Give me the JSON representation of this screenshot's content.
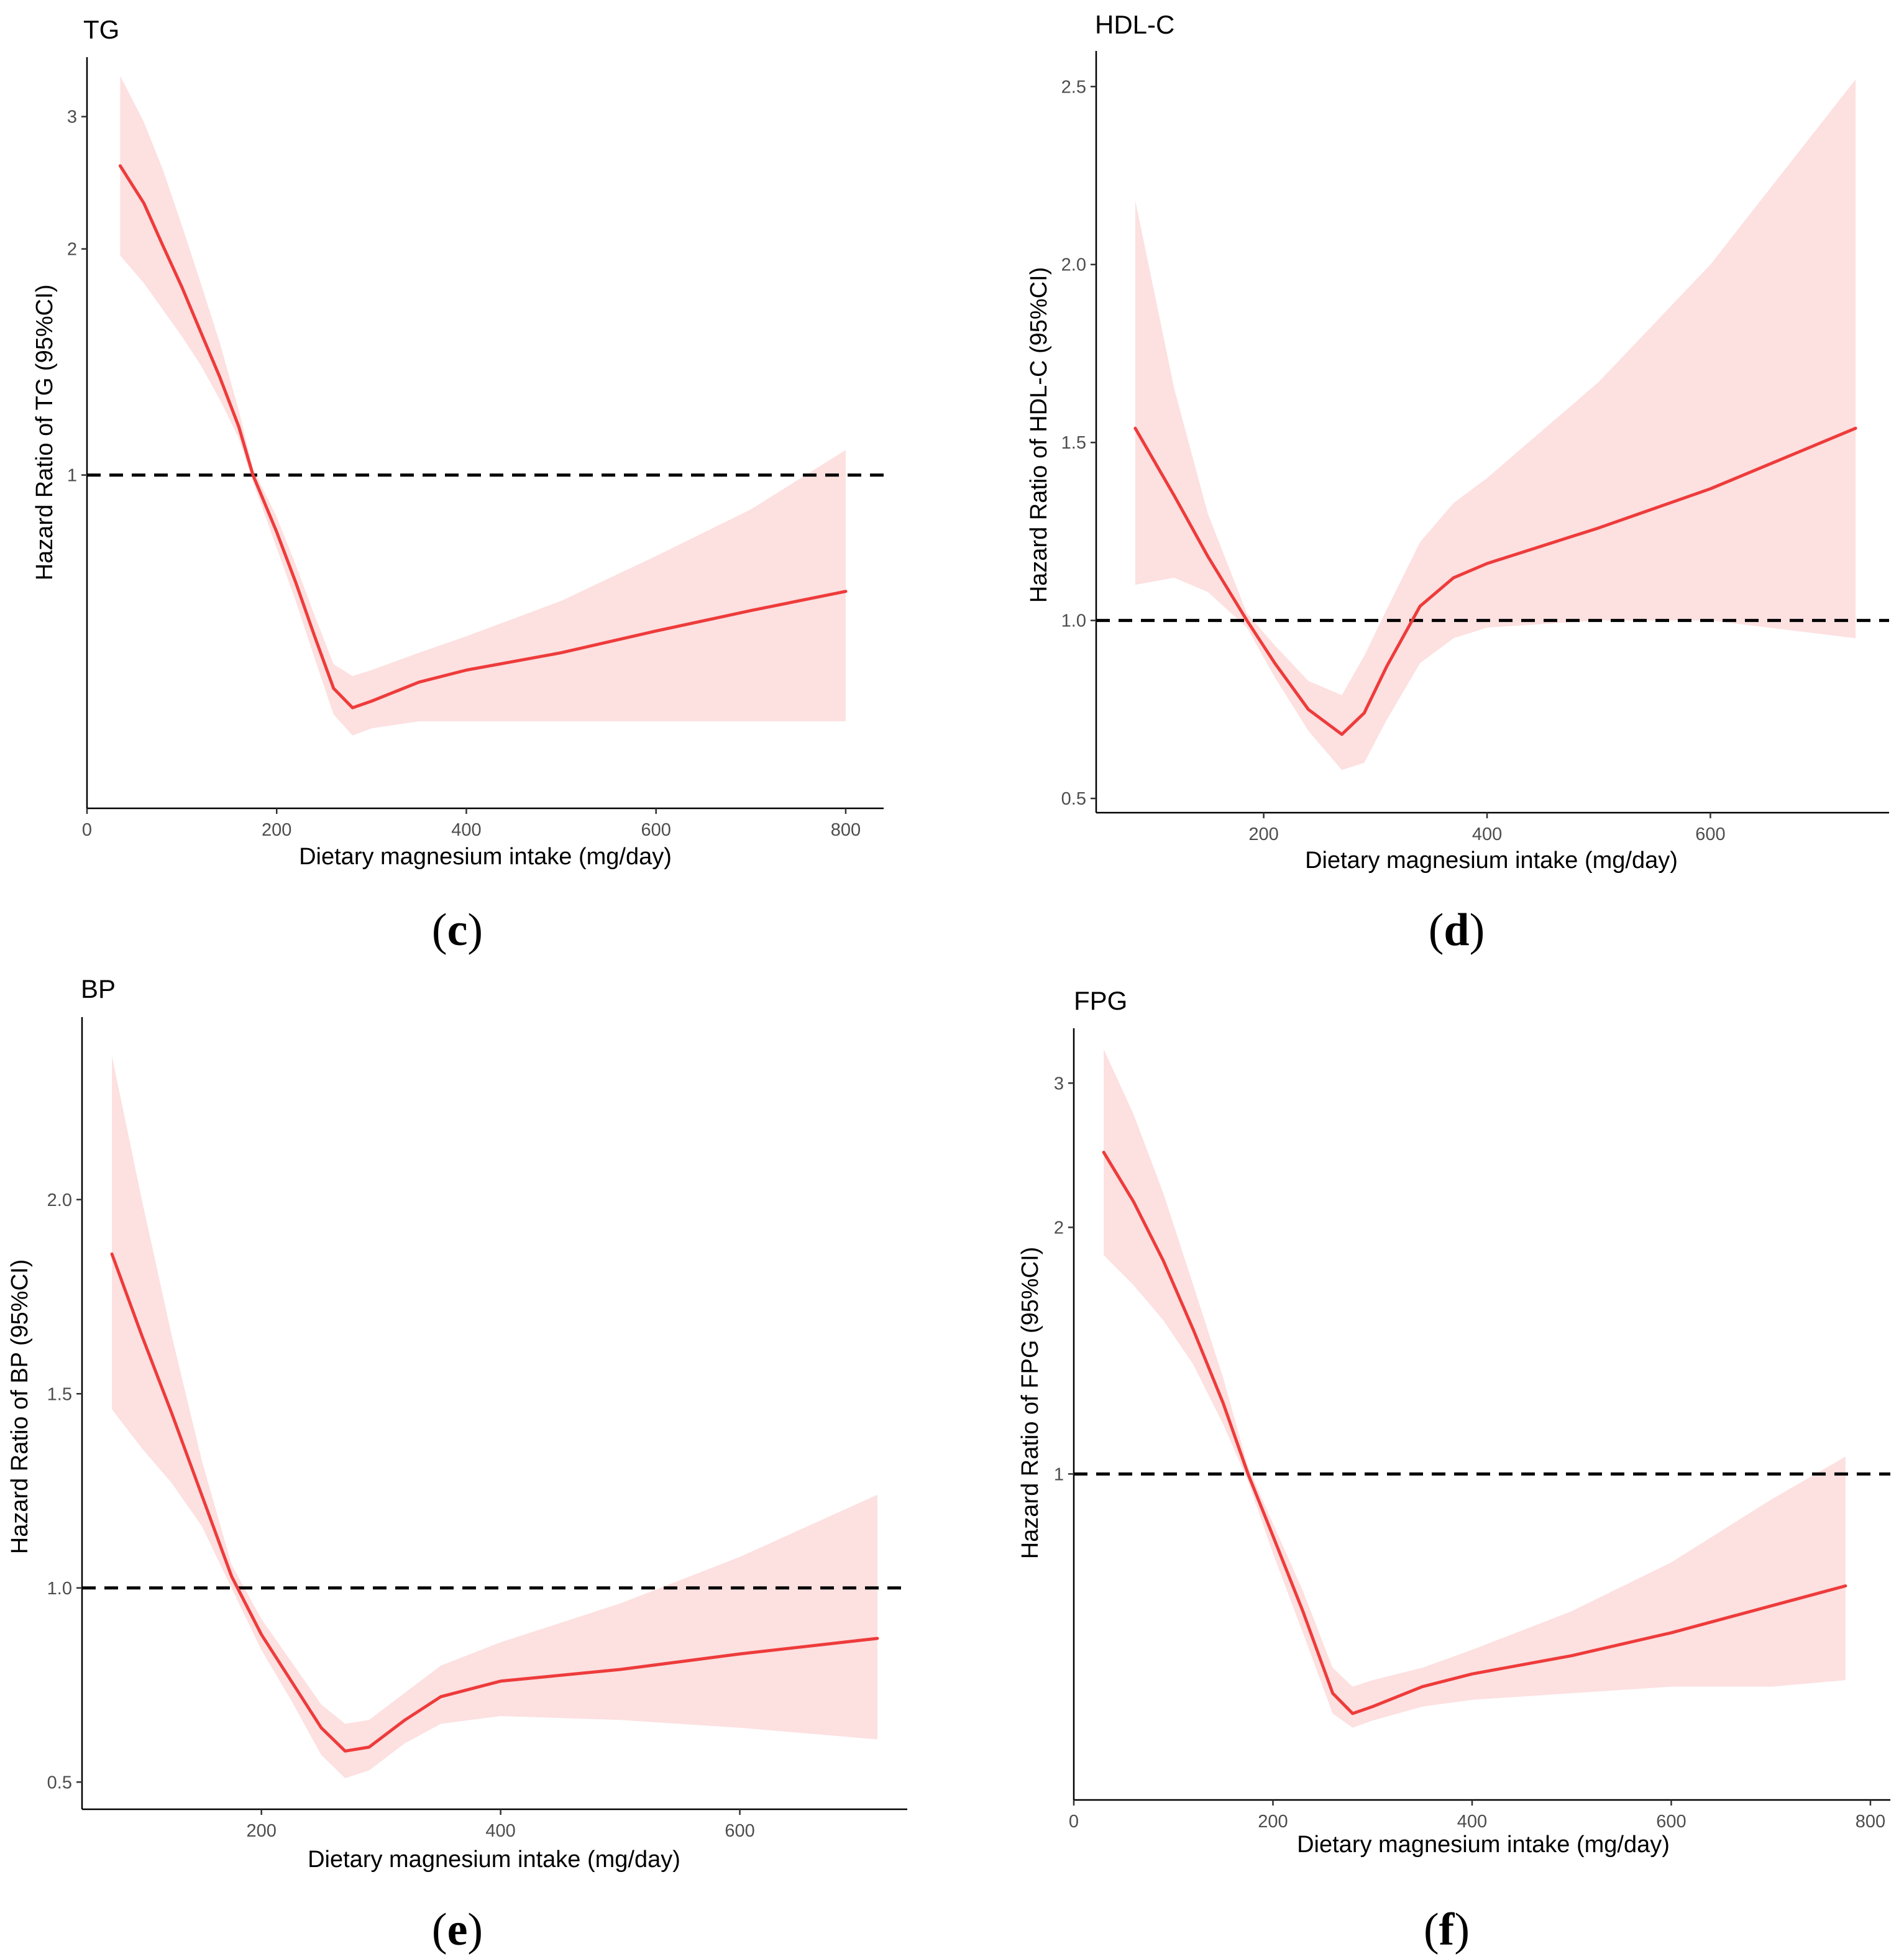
{
  "chart_data": [
    {
      "type": "line",
      "panel": "c",
      "caption": {
        "open": "(",
        "letter": "c",
        "close": ")"
      },
      "title": "TG",
      "xlabel": "Dietary magnesium intake (mg/day)",
      "ylabel": "Hazard Ratio of TG (95%CI)",
      "log_y": true,
      "xlim": [
        0,
        840
      ],
      "ylim": [
        0.36,
        3.6
      ],
      "xticks": [
        0,
        200,
        400,
        600,
        800
      ],
      "xtick_labels": [
        "0",
        "200",
        "400",
        "600",
        "800"
      ],
      "yticks": [
        1,
        2,
        3
      ],
      "ytick_labels": [
        "1",
        "2",
        "3"
      ],
      "reference_line": 1,
      "colors": {
        "line": "#ee3b3b",
        "band": "#fde0e0",
        "reference": "#000000"
      },
      "series": [
        {
          "x": [
            35,
            60,
            80,
            100,
            120,
            140,
            160,
            175,
            200,
            220,
            240,
            260,
            280,
            300,
            350,
            400,
            500,
            600,
            700,
            800
          ],
          "y": [
            2.58,
            2.3,
            2.02,
            1.78,
            1.55,
            1.35,
            1.16,
            1.0,
            0.84,
            0.72,
            0.61,
            0.52,
            0.49,
            0.5,
            0.53,
            0.55,
            0.58,
            0.62,
            0.66,
            0.7
          ],
          "lower": [
            1.96,
            1.8,
            1.66,
            1.53,
            1.4,
            1.26,
            1.12,
            0.98,
            0.8,
            0.68,
            0.57,
            0.48,
            0.45,
            0.46,
            0.47,
            0.47,
            0.47,
            0.47,
            0.47,
            0.47
          ],
          "upper": [
            3.4,
            2.95,
            2.55,
            2.15,
            1.8,
            1.5,
            1.22,
            1.02,
            0.88,
            0.76,
            0.65,
            0.56,
            0.54,
            0.55,
            0.58,
            0.61,
            0.68,
            0.78,
            0.9,
            1.08
          ]
        }
      ]
    },
    {
      "type": "line",
      "panel": "d",
      "caption": {
        "open": "(",
        "letter": "d",
        "close": ")"
      },
      "title": "HDL-C",
      "xlabel": "Dietary magnesium intake (mg/day)",
      "ylabel": "Hazard Ratio of HDL-C (95%CI)",
      "log_y": false,
      "xlim": [
        50,
        760
      ],
      "ylim": [
        0.46,
        2.6
      ],
      "xticks": [
        200,
        400,
        600
      ],
      "xtick_labels": [
        "200",
        "400",
        "600"
      ],
      "yticks": [
        0.5,
        1.0,
        1.5,
        2.0,
        2.5
      ],
      "ytick_labels": [
        "0.5",
        "1.0",
        "1.5",
        "2.0",
        "2.5"
      ],
      "reference_line": 1.0,
      "colors": {
        "line": "#ee3b3b",
        "band": "#fde0e0",
        "reference": "#000000"
      },
      "series": [
        {
          "x": [
            85,
            120,
            150,
            185,
            210,
            240,
            270,
            290,
            310,
            340,
            370,
            400,
            500,
            600,
            730
          ],
          "y": [
            1.54,
            1.35,
            1.18,
            1.0,
            0.88,
            0.75,
            0.68,
            0.74,
            0.87,
            1.04,
            1.12,
            1.16,
            1.26,
            1.37,
            1.54
          ],
          "lower": [
            1.1,
            1.12,
            1.08,
            0.98,
            0.84,
            0.69,
            0.58,
            0.6,
            0.72,
            0.88,
            0.95,
            0.98,
            1.0,
            1.0,
            0.95
          ],
          "upper": [
            2.18,
            1.65,
            1.3,
            1.02,
            0.93,
            0.83,
            0.79,
            0.9,
            1.03,
            1.22,
            1.33,
            1.4,
            1.67,
            2.0,
            2.52
          ]
        }
      ]
    },
    {
      "type": "line",
      "panel": "e",
      "caption": {
        "open": "(",
        "letter": "e",
        "close": ")"
      },
      "title": "BP",
      "xlabel": "Dietary magnesium intake (mg/day)",
      "ylabel": "Hazard Ratio of BP (95%CI)",
      "log_y": false,
      "xlim": [
        50,
        740
      ],
      "ylim": [
        0.43,
        2.47
      ],
      "xticks": [
        200,
        400,
        600
      ],
      "xtick_labels": [
        "200",
        "400",
        "600"
      ],
      "yticks": [
        0.5,
        1.0,
        1.5,
        2.0
      ],
      "ytick_labels": [
        "0.5",
        "1.0",
        "1.5",
        "2.0"
      ],
      "reference_line": 1.0,
      "colors": {
        "line": "#ee3b3b",
        "band": "#fde0e0",
        "reference": "#000000"
      },
      "series": [
        {
          "x": [
            75,
            100,
            125,
            150,
            175,
            200,
            225,
            250,
            270,
            290,
            320,
            350,
            400,
            500,
            600,
            715
          ],
          "y": [
            1.86,
            1.65,
            1.45,
            1.24,
            1.03,
            0.88,
            0.76,
            0.64,
            0.58,
            0.59,
            0.66,
            0.72,
            0.76,
            0.79,
            0.83,
            0.87
          ],
          "lower": [
            1.46,
            1.36,
            1.27,
            1.16,
            1.0,
            0.84,
            0.71,
            0.57,
            0.51,
            0.53,
            0.6,
            0.65,
            0.67,
            0.66,
            0.64,
            0.61
          ],
          "upper": [
            2.37,
            2.0,
            1.65,
            1.33,
            1.06,
            0.92,
            0.81,
            0.7,
            0.65,
            0.66,
            0.73,
            0.8,
            0.86,
            0.96,
            1.08,
            1.24
          ]
        }
      ]
    },
    {
      "type": "line",
      "panel": "f",
      "caption": {
        "open": "(",
        "letter": "f",
        "close": ")"
      },
      "title": "FPG",
      "xlabel": "Dietary magnesium intake (mg/day)",
      "ylabel": "Hazard Ratio of FPG (95%CI)",
      "log_y": true,
      "xlim": [
        0,
        820
      ],
      "ylim": [
        0.4,
        3.5
      ],
      "xticks": [
        0,
        200,
        400,
        600,
        800
      ],
      "xtick_labels": [
        "0",
        "200",
        "400",
        "600",
        "800"
      ],
      "yticks": [
        1,
        2,
        3
      ],
      "ytick_labels": [
        "1",
        "2",
        "3"
      ],
      "reference_line": 1,
      "colors": {
        "line": "#ee3b3b",
        "band": "#fde0e0",
        "reference": "#000000"
      },
      "series": [
        {
          "x": [
            30,
            60,
            90,
            120,
            150,
            175,
            200,
            230,
            260,
            280,
            300,
            350,
            400,
            500,
            600,
            700,
            775
          ],
          "y": [
            2.47,
            2.15,
            1.82,
            1.5,
            1.22,
            1.0,
            0.84,
            0.68,
            0.54,
            0.51,
            0.52,
            0.55,
            0.57,
            0.6,
            0.64,
            0.69,
            0.73
          ],
          "lower": [
            1.85,
            1.7,
            1.54,
            1.36,
            1.15,
            0.98,
            0.8,
            0.64,
            0.51,
            0.49,
            0.5,
            0.52,
            0.53,
            0.54,
            0.55,
            0.55,
            0.56
          ],
          "upper": [
            3.3,
            2.75,
            2.2,
            1.7,
            1.31,
            1.02,
            0.87,
            0.72,
            0.58,
            0.55,
            0.56,
            0.58,
            0.61,
            0.68,
            0.78,
            0.93,
            1.05
          ]
        }
      ]
    }
  ]
}
